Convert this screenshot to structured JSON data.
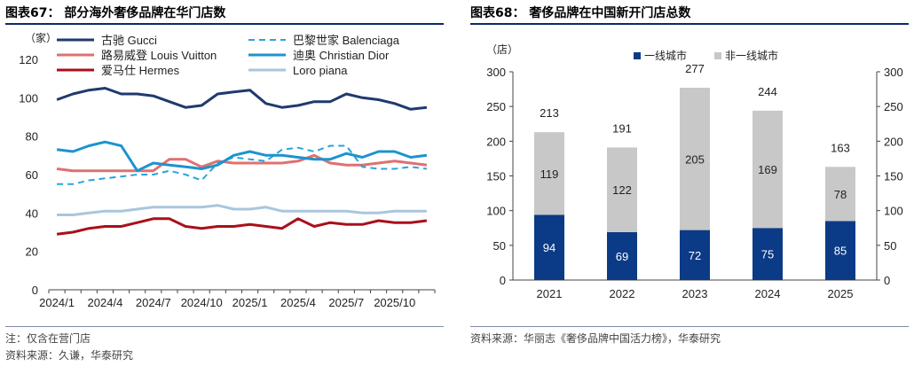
{
  "left": {
    "title": "图表67：  部分海外奢侈品牌在华门店数",
    "note": "注：仅含在营门店",
    "source": "资料来源：久谦，华泰研究"
  },
  "right": {
    "title": "图表68：  奢侈品牌在中国新开门店总数",
    "source": "资料来源：华丽志《奢侈品牌中国活力榜》，华泰研究"
  },
  "chart_data": [
    {
      "type": "line",
      "ylabel": "（家）",
      "ylim": [
        0,
        120
      ],
      "yticks": [
        0,
        20,
        40,
        60,
        80,
        100,
        120
      ],
      "xtick_labels": [
        "2024/1",
        "2024/4",
        "2024/7",
        "2024/10",
        "2025/1",
        "2025/4",
        "2025/7",
        "2025/10"
      ],
      "x_count": 24,
      "series": [
        {
          "name": "古驰 Gucci",
          "color": "#1f3a6e",
          "dashed": false,
          "values": [
            99,
            102,
            104,
            105,
            102,
            102,
            101,
            98,
            95,
            96,
            102,
            103,
            104,
            97,
            95,
            96,
            98,
            98,
            102,
            100,
            99,
            97,
            94,
            95
          ]
        },
        {
          "name": "路易威登 Louis Vuitton",
          "color": "#e07070",
          "dashed": false,
          "values": [
            63,
            62,
            62,
            62,
            62,
            62,
            62,
            68,
            68,
            64,
            67,
            66,
            66,
            66,
            66,
            67,
            70,
            66,
            65,
            65,
            66,
            67,
            66,
            65
          ]
        },
        {
          "name": "爱马仕 Hermes",
          "color": "#a8101a",
          "dashed": false,
          "values": [
            29,
            30,
            32,
            33,
            33,
            35,
            37,
            37,
            33,
            32,
            33,
            33,
            34,
            33,
            32,
            37,
            33,
            35,
            34,
            34,
            36,
            35,
            35,
            36
          ]
        },
        {
          "name": "巴黎世家 Balenciaga",
          "color": "#2aa3dd",
          "dashed": true,
          "values": [
            55,
            55,
            57,
            58,
            59,
            60,
            60,
            62,
            60,
            57,
            66,
            69,
            68,
            67,
            73,
            74,
            72,
            75,
            75,
            64,
            63,
            63,
            64,
            63
          ]
        },
        {
          "name": "迪奥 Christian Dior",
          "color": "#1c93cf",
          "dashed": false,
          "values": [
            73,
            72,
            75,
            77,
            75,
            62,
            66,
            65,
            64,
            63,
            65,
            70,
            72,
            70,
            70,
            69,
            68,
            68,
            71,
            69,
            72,
            72,
            69,
            70
          ]
        },
        {
          "name": "Loro piana",
          "color": "#a9c6dc",
          "dashed": false,
          "values": [
            39,
            39,
            40,
            41,
            41,
            42,
            43,
            43,
            43,
            43,
            44,
            42,
            42,
            43,
            41,
            41,
            41,
            41,
            41,
            40,
            40,
            41,
            41,
            41
          ]
        }
      ]
    },
    {
      "type": "bar",
      "ylabel": "（店）",
      "ylim": [
        0,
        300
      ],
      "yticks": [
        0,
        50,
        100,
        150,
        200,
        250,
        300
      ],
      "categories": [
        "2021",
        "2022",
        "2023",
        "2024",
        "2025"
      ],
      "totals": [
        213,
        191,
        277,
        244,
        163
      ],
      "series": [
        {
          "name": "一线城市",
          "color": "#0b3a86",
          "values": [
            94,
            69,
            72,
            75,
            85
          ]
        },
        {
          "name": "非一线城市",
          "color": "#c8c8c8",
          "values": [
            119,
            122,
            205,
            169,
            78
          ]
        }
      ]
    }
  ]
}
